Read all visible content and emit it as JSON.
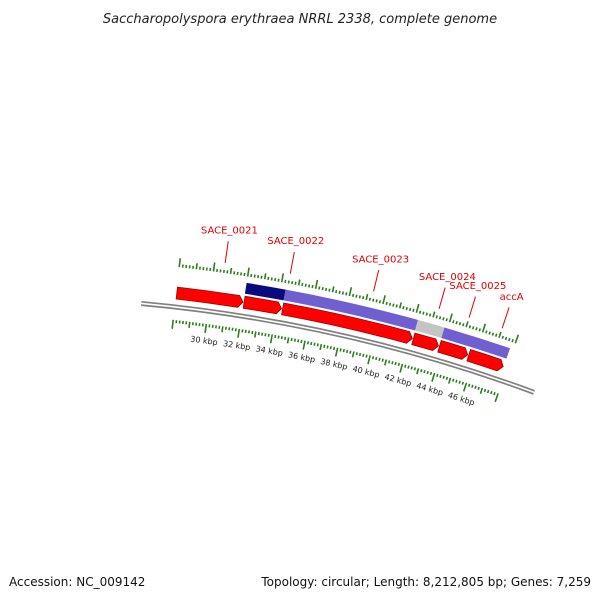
{
  "title": "Saccharopolyspora erythraea NRRL 2338, complete genome",
  "genes": [
    {
      "id": "SACE_0021",
      "kbp": 30.6
    },
    {
      "id": "SACE_0022",
      "kbp": 34.4
    },
    {
      "id": "SACE_0023",
      "kbp": 39.3
    },
    {
      "id": "SACE_0024",
      "kbp": 43.2
    },
    {
      "id": "SACE_0025",
      "kbp": 45.0
    },
    {
      "id": "accA",
      "kbp": 47.0
    }
  ],
  "scale_labels": [
    {
      "kbp": 30,
      "label": "30 kbp"
    },
    {
      "kbp": 32,
      "label": "32 kbp"
    },
    {
      "kbp": 34,
      "label": "34 kbp"
    },
    {
      "kbp": 36,
      "label": "36 kbp"
    },
    {
      "kbp": 38,
      "label": "38 kbp"
    },
    {
      "kbp": 40,
      "label": "40 kbp"
    },
    {
      "kbp": 42,
      "label": "42 kbp"
    },
    {
      "kbp": 44,
      "label": "44 kbp"
    },
    {
      "kbp": 46,
      "label": "46 kbp"
    }
  ],
  "forward_cds": [
    {
      "start": 28.0,
      "end": 32.0
    },
    {
      "start": 32.0,
      "end": 34.3
    },
    {
      "start": 34.3,
      "end": 42.2
    },
    {
      "start": 42.2,
      "end": 43.8
    },
    {
      "start": 43.8,
      "end": 45.6
    },
    {
      "start": 45.6,
      "end": 47.8
    }
  ],
  "feature_band": [
    {
      "start": 32.0,
      "end": 34.3,
      "color": "#0a0a80"
    },
    {
      "start": 34.3,
      "end": 42.2,
      "color": "#6f5fd0"
    },
    {
      "start": 42.2,
      "end": 43.8,
      "color": "#c4c4c4"
    },
    {
      "start": 43.8,
      "end": 47.8,
      "color": "#6f5fd0"
    }
  ],
  "colors": {
    "cds": "#ff0000",
    "cds_edge": "#a00000",
    "tick": "#2e7d1e",
    "backbone": "#808080",
    "label_line": "#e00000"
  },
  "footer": {
    "accession": "Accession: NC_009142",
    "stats": "Topology: circular; Length: 8,212,805 bp; Genes: 7,259"
  }
}
